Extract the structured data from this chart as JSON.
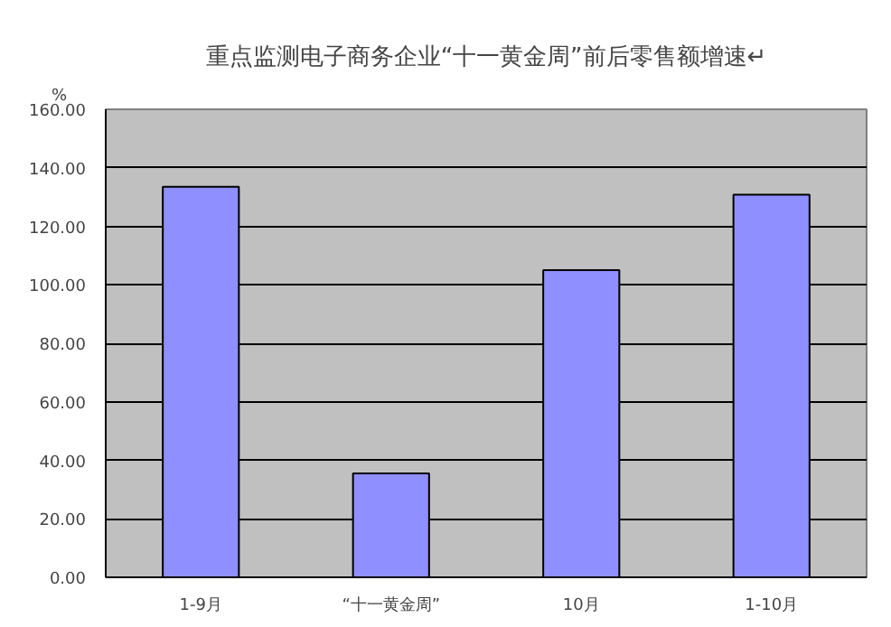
{
  "chart_data": {
    "type": "bar",
    "title": "重点监测电子商务企业“十一黄金周”前后零售额增速↵",
    "ylabel": "%",
    "categories": [
      "1-9月",
      "“十一黄金周”",
      "10月",
      "1-10月"
    ],
    "values": [
      133.5,
      35.5,
      105,
      130.8
    ],
    "color": "#8f8fff",
    "ylim": [
      0,
      160
    ],
    "yticks": [
      {
        "value": 0,
        "label": "0.00"
      },
      {
        "value": 20,
        "label": "20.00"
      },
      {
        "value": 40,
        "label": "40.00"
      },
      {
        "value": 60,
        "label": "60.00"
      },
      {
        "value": 80,
        "label": "80.00"
      },
      {
        "value": 100,
        "label": "100.00"
      },
      {
        "value": 120,
        "label": "120.00"
      },
      {
        "value": 140,
        "label": "140.00"
      },
      {
        "value": 160,
        "label": "160.00"
      }
    ],
    "grid": "y"
  }
}
